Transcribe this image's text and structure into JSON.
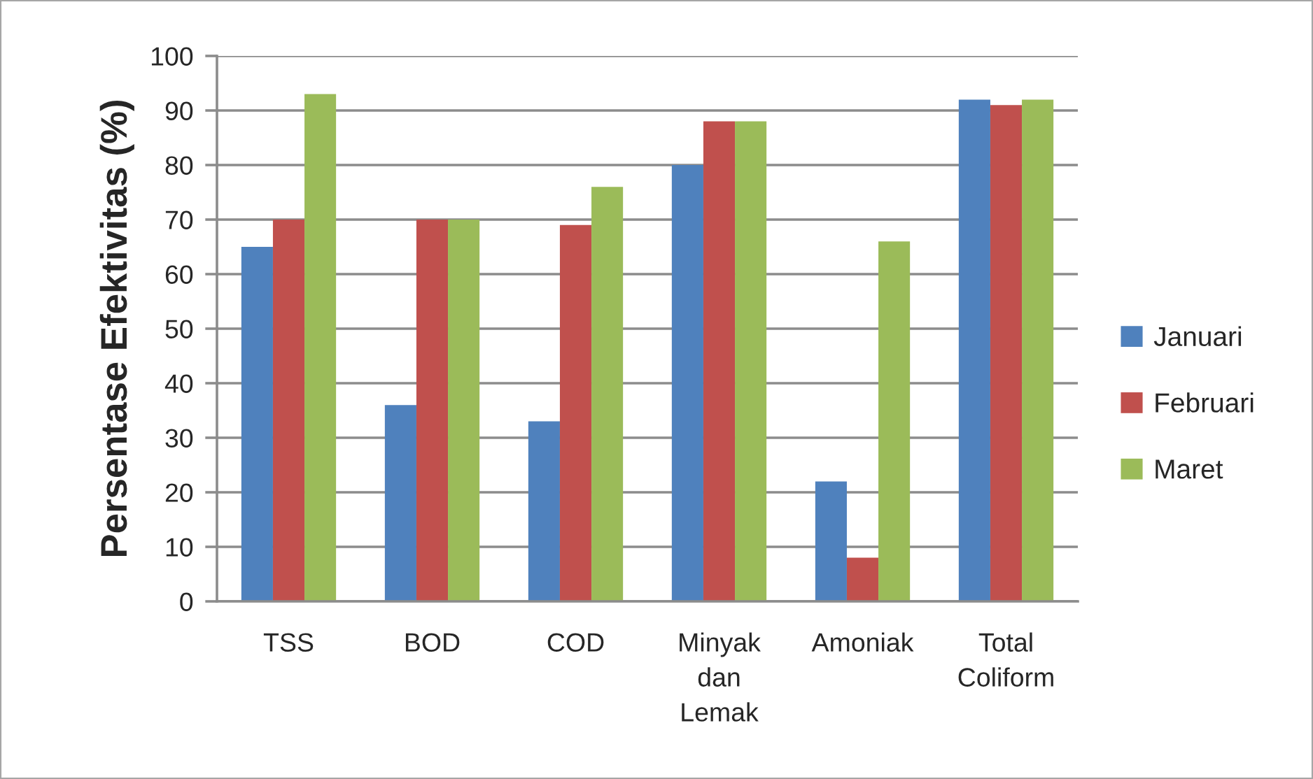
{
  "chart_data": {
    "type": "bar",
    "ylabel": "Persentase Efektivitas (%)",
    "categories": [
      "TSS",
      "BOD",
      "COD",
      "Minyak\ndan\nLemak",
      "Amoniak",
      "Total\nColiform"
    ],
    "series": [
      {
        "name": "Januari",
        "color": "#4f81bd",
        "values": [
          65,
          36,
          33,
          80,
          22,
          92
        ]
      },
      {
        "name": "Februari",
        "color": "#c0504d",
        "values": [
          70,
          70,
          69,
          88,
          8,
          91
        ]
      },
      {
        "name": "Maret",
        "color": "#9bbb59",
        "values": [
          93,
          70,
          76,
          88,
          66,
          92
        ]
      }
    ],
    "ylim": [
      0,
      100
    ],
    "yticks": [
      0,
      10,
      20,
      30,
      40,
      50,
      60,
      70,
      80,
      90,
      100
    ],
    "grid": "y",
    "legend": "right"
  }
}
